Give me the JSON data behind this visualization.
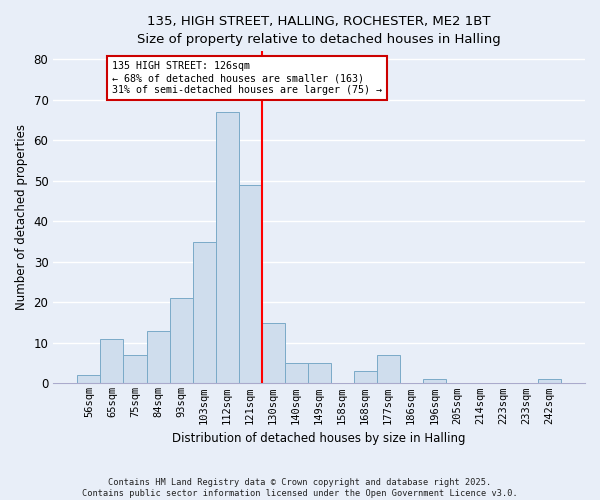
{
  "title1": "135, HIGH STREET, HALLING, ROCHESTER, ME2 1BT",
  "title2": "Size of property relative to detached houses in Halling",
  "xlabel": "Distribution of detached houses by size in Halling",
  "ylabel": "Number of detached properties",
  "categories": [
    "56sqm",
    "65sqm",
    "75sqm",
    "84sqm",
    "93sqm",
    "103sqm",
    "112sqm",
    "121sqm",
    "130sqm",
    "140sqm",
    "149sqm",
    "158sqm",
    "168sqm",
    "177sqm",
    "186sqm",
    "196sqm",
    "205sqm",
    "214sqm",
    "223sqm",
    "233sqm",
    "242sqm"
  ],
  "values": [
    2,
    11,
    7,
    13,
    21,
    35,
    67,
    49,
    15,
    5,
    5,
    0,
    3,
    7,
    0,
    1,
    0,
    0,
    0,
    0,
    1
  ],
  "bar_color": "#cfdded",
  "bar_edge_color": "#7aaac8",
  "vline_color": "red",
  "vline_index": 7.5,
  "annotation_text": "135 HIGH STREET: 126sqm\n← 68% of detached houses are smaller (163)\n31% of semi-detached houses are larger (75) →",
  "annotation_box_facecolor": "#ffffff",
  "annotation_box_edgecolor": "#cc0000",
  "ylim": [
    0,
    82
  ],
  "yticks": [
    0,
    10,
    20,
    30,
    40,
    50,
    60,
    70,
    80
  ],
  "footer": "Contains HM Land Registry data © Crown copyright and database right 2025.\nContains public sector information licensed under the Open Government Licence v3.0.",
  "bg_color": "#e8eef8",
  "plot_bg_color": "#e8eef8",
  "grid_color": "#ffffff",
  "title_fontsize": 9.5,
  "axis_fontsize": 8.5,
  "tick_fontsize": 7.5,
  "footer_fontsize": 6.2
}
